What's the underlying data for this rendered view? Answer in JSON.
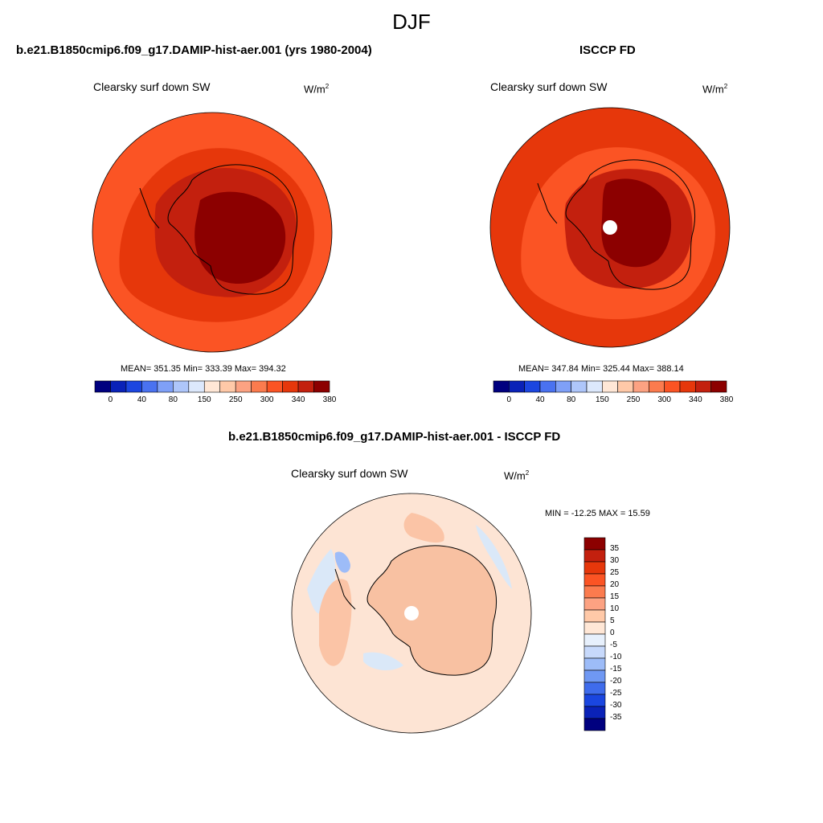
{
  "page": {
    "title": "DJF"
  },
  "panels": {
    "model": {
      "title": "b.e21.B1850cmip6.f09_g17.DAMIP-hist-aer.001 (yrs 1980-2004)",
      "label": "Clearsky surf down SW",
      "unit": "W/m",
      "unit_sup": "2",
      "stats": "MEAN= 351.35  Min= 333.39  Max= 394.32"
    },
    "obs": {
      "title": "ISCCP FD",
      "label": "Clearsky surf down SW",
      "unit": "W/m",
      "unit_sup": "2",
      "stats": "MEAN= 347.84  Min= 325.44  Max= 388.14"
    },
    "diff": {
      "title": "b.e21.B1850cmip6.f09_g17.DAMIP-hist-aer.001 - ISCCP FD",
      "label": "Clearsky surf down SW",
      "unit": "W/m",
      "unit_sup": "2",
      "stats": "MIN = -12.25 MAX =  15.59"
    }
  },
  "chart_data": [
    {
      "type": "heatmap",
      "projection": "south polar stereographic",
      "panel": "model",
      "stats": {
        "mean": 351.35,
        "min": 333.39,
        "max": 394.32
      },
      "colorbar": {
        "orientation": "horizontal",
        "tick_labels": [
          "0",
          "40",
          "80",
          "150",
          "250",
          "300",
          "340",
          "380"
        ],
        "colors": [
          "#00007f",
          "#0a22b8",
          "#1c46e0",
          "#4a72f0",
          "#7fa0f7",
          "#aec6fa",
          "#dce8fc",
          "#ffe7d6",
          "#ffc9a8",
          "#fca282",
          "#fb7b4e",
          "#fb5424",
          "#e6370b",
          "#c3200e",
          "#8c0000"
        ]
      }
    },
    {
      "type": "heatmap",
      "projection": "south polar stereographic",
      "panel": "obs",
      "stats": {
        "mean": 347.84,
        "min": 325.44,
        "max": 388.14
      },
      "colorbar": {
        "orientation": "horizontal",
        "tick_labels": [
          "0",
          "40",
          "80",
          "150",
          "250",
          "300",
          "340",
          "380"
        ],
        "colors": [
          "#00007f",
          "#0a22b8",
          "#1c46e0",
          "#4a72f0",
          "#7fa0f7",
          "#aec6fa",
          "#dce8fc",
          "#ffe7d6",
          "#ffc9a8",
          "#fca282",
          "#fb7b4e",
          "#fb5424",
          "#e6370b",
          "#c3200e",
          "#8c0000"
        ]
      }
    },
    {
      "type": "heatmap",
      "projection": "south polar stereographic",
      "panel": "diff",
      "stats": {
        "min": -12.25,
        "max": 15.59
      },
      "colorbar": {
        "orientation": "vertical",
        "tick_labels": [
          "35",
          "30",
          "25",
          "20",
          "15",
          "10",
          "5",
          "0",
          "-5",
          "-10",
          "-15",
          "-20",
          "-25",
          "-30",
          "-35"
        ],
        "colors": [
          "#8c0000",
          "#c3200e",
          "#e6370b",
          "#fb5424",
          "#fb7b4e",
          "#fca282",
          "#ffc9a8",
          "#ffe7d6",
          "#e7f0fc",
          "#c7d9fb",
          "#9dbcf8",
          "#6f98f3",
          "#3f6cec",
          "#1a46e0",
          "#0a22b8",
          "#00007f"
        ]
      }
    }
  ]
}
